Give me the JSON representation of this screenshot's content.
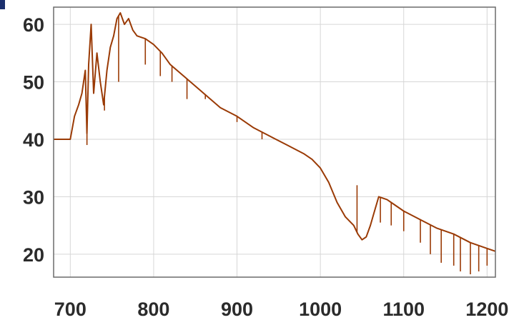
{
  "chart_data": {
    "type": "line",
    "title": "",
    "xlabel": "",
    "ylabel": "",
    "xlim": [
      680,
      1210
    ],
    "ylim": [
      16,
      63
    ],
    "grid": true,
    "legend": "none",
    "x_ticks": [
      "700",
      "800",
      "900",
      "1000",
      "1100",
      "1200"
    ],
    "y_ticks": [
      "20",
      "30",
      "40",
      "50",
      "60"
    ],
    "series": [
      {
        "color": "#9a3a05",
        "x": [
          680,
          700,
          705,
          710,
          714,
          718,
          720,
          722,
          725,
          728,
          732,
          736,
          740,
          744,
          748,
          752,
          756,
          760,
          765,
          770,
          775,
          780,
          790,
          800,
          810,
          820,
          840,
          860,
          880,
          900,
          920,
          940,
          960,
          980,
          990,
          1000,
          1010,
          1020,
          1030,
          1040,
          1045,
          1050,
          1055,
          1060,
          1065,
          1070,
          1080,
          1090,
          1100,
          1120,
          1140,
          1160,
          1180,
          1200,
          1210
        ],
        "y": [
          40,
          40,
          44,
          46,
          48,
          52,
          41,
          53,
          60,
          48,
          55,
          50,
          46,
          52,
          56,
          58,
          61,
          62,
          60,
          61,
          59,
          58,
          57.5,
          56.5,
          55,
          53,
          50.5,
          48,
          45.5,
          44,
          42,
          40.5,
          39,
          37.5,
          36.5,
          35,
          32.5,
          29,
          26.5,
          25,
          23.5,
          22.5,
          23,
          25,
          27.5,
          30,
          29.5,
          28.5,
          27.5,
          26,
          24.5,
          23.5,
          22,
          21,
          20.5
        ]
      }
    ],
    "dips": [
      {
        "x": 720,
        "y": 39
      },
      {
        "x": 741,
        "y": 45
      },
      {
        "x": 758,
        "y": 50
      },
      {
        "x": 790,
        "y": 53
      },
      {
        "x": 808,
        "y": 51
      },
      {
        "x": 822,
        "y": 50
      },
      {
        "x": 840,
        "y": 47
      },
      {
        "x": 862,
        "y": 47
      },
      {
        "x": 900,
        "y": 43
      },
      {
        "x": 930,
        "y": 40
      },
      {
        "x": 1044,
        "y": 32
      },
      {
        "x": 1072,
        "y": 25.5
      },
      {
        "x": 1085,
        "y": 25
      },
      {
        "x": 1100,
        "y": 24
      },
      {
        "x": 1120,
        "y": 22
      },
      {
        "x": 1132,
        "y": 20
      },
      {
        "x": 1145,
        "y": 18.5
      },
      {
        "x": 1160,
        "y": 18
      },
      {
        "x": 1168,
        "y": 17
      },
      {
        "x": 1180,
        "y": 16.5
      },
      {
        "x": 1190,
        "y": 17
      },
      {
        "x": 1200,
        "y": 18
      }
    ]
  }
}
